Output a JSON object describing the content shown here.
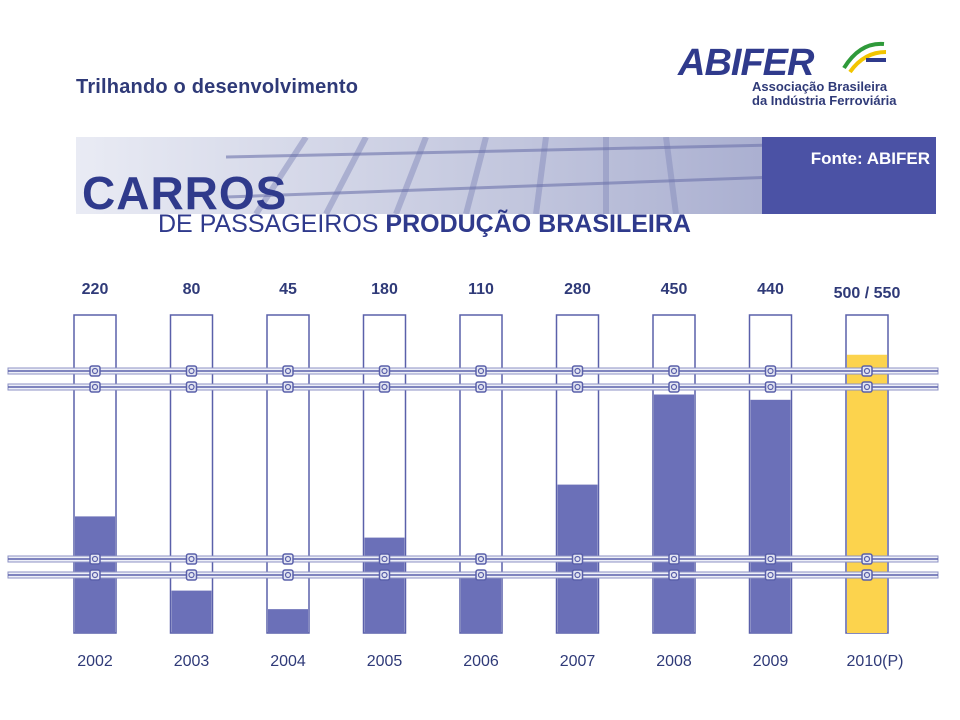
{
  "header": {
    "tagline": "Trilhando o desenvolvimento",
    "logo_name": "ABIFER",
    "logo_line1": "Associação Brasileira",
    "logo_line2": "da Indústria Ferroviária",
    "source": "Fonte: ABIFER"
  },
  "title": {
    "main": "CARROS",
    "sub_normal": "DE PASSAGEIROS ",
    "sub_bold": "PRODUÇÃO BRASILEIRA"
  },
  "colors": {
    "brand": "#2f3a8c",
    "bar": "#6b70b8",
    "bar_highlight": "#fcd34d",
    "rail": "#5a60aa"
  },
  "chart_data": {
    "type": "bar",
    "title": "",
    "categories": [
      "2002",
      "2003",
      "2004",
      "2005",
      "2006",
      "2007",
      "2008",
      "2009",
      "2010(P)"
    ],
    "value_labels": [
      "220",
      "80",
      "45",
      "180",
      "110",
      "280",
      "450",
      "440",
      "500 / 550"
    ],
    "values": [
      220,
      80,
      45,
      180,
      110,
      280,
      450,
      440,
      525
    ],
    "highlight_index": 8,
    "ylim": [
      0,
      600
    ],
    "grid": false,
    "legend": "none"
  }
}
